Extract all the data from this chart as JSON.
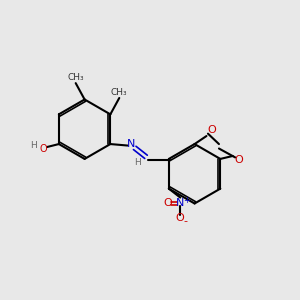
{
  "bg_color": "#e8e8e8",
  "bond_color": "#000000",
  "atom_colors": {
    "C": "#000000",
    "N": "#0000cc",
    "O": "#cc0000",
    "H": "#666666"
  },
  "figsize": [
    3.0,
    3.0
  ],
  "dpi": 100
}
